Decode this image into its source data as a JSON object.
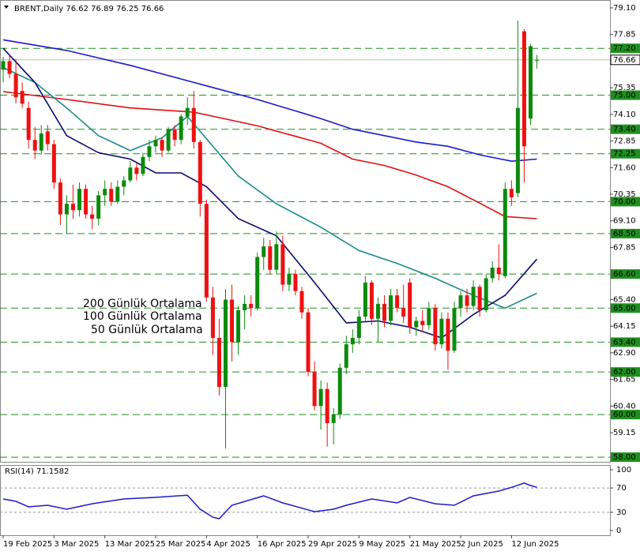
{
  "chart_data": [
    {
      "type": "candlestick",
      "title": "BRENT,Daily  76.62 76.89 76.25 76.66",
      "xticks": [
        {
          "value": 0,
          "label": "19 Feb 2025"
        },
        {
          "value": 8,
          "label": "3 Mar 2025"
        },
        {
          "value": 16,
          "label": "13 Mar 2025"
        },
        {
          "value": 24,
          "label": "25 Mar 2025"
        },
        {
          "value": 32,
          "label": "4 Apr 2025"
        },
        {
          "value": 40,
          "label": "16 Apr 2025"
        },
        {
          "value": 48,
          "label": "29 Apr 2025"
        },
        {
          "value": 56,
          "label": "9 May 2025"
        },
        {
          "value": 64,
          "label": "21 May 2025"
        },
        {
          "value": 72,
          "label": "2 Jun 2025"
        },
        {
          "value": 80,
          "label": "12 Jun 2025"
        }
      ],
      "xlim": [
        -0.5,
        95.5
      ],
      "open": [
        76.2,
        76.6,
        76.0,
        75.2,
        74.4,
        72.9,
        72.4,
        73.3,
        72.7,
        70.9,
        69.4,
        69.9,
        69.6,
        70.6,
        69.4,
        69.2,
        70.3,
        70.6,
        70.0,
        70.7,
        71.0,
        71.6,
        71.3,
        72.1,
        72.6,
        72.9,
        72.4,
        73.4,
        72.9,
        74.0,
        74.4,
        72.8,
        69.9,
        65.5,
        63.6,
        61.3,
        65.4,
        63.4,
        64.9,
        65.2,
        65.0,
        67.4,
        67.9,
        66.8,
        68.0,
        66.1,
        66.6,
        65.8,
        64.8,
        62.0,
        60.4,
        61.2,
        59.6,
        60.0,
        62.2,
        63.3,
        63.6,
        64.6,
        66.2,
        64.5,
        65.2,
        64.4,
        65.6,
        65.0,
        66.2,
        64.1,
        64.4,
        64.2,
        65.0,
        63.3,
        64.5,
        63.0,
        65.0,
        65.6,
        65.1,
        66.0,
        64.9,
        66.4,
        66.9,
        66.5,
        70.6,
        70.4,
        78.0,
        73.9,
        76.62
      ],
      "high": [
        76.8,
        76.9,
        76.7,
        75.6,
        74.7,
        73.5,
        73.6,
        73.6,
        72.9,
        71.1,
        70.3,
        70.8,
        70.9,
        70.8,
        69.8,
        70.5,
        71.0,
        70.9,
        71.0,
        71.2,
        71.9,
        71.8,
        72.3,
        72.9,
        73.1,
        73.0,
        73.5,
        73.6,
        74.1,
        74.9,
        75.2,
        72.9,
        70.1,
        66.0,
        64.5,
        65.9,
        66.1,
        65.1,
        65.6,
        65.6,
        67.6,
        68.3,
        68.2,
        68.6,
        68.4,
        66.9,
        66.8,
        66.0,
        65.0,
        62.5,
        61.6,
        61.5,
        60.3,
        62.4,
        63.7,
        64.0,
        64.9,
        66.5,
        66.3,
        65.5,
        65.6,
        65.9,
        65.9,
        66.1,
        66.4,
        64.6,
        64.9,
        65.3,
        65.2,
        64.8,
        64.8,
        65.3,
        65.8,
        65.9,
        66.3,
        66.1,
        66.6,
        67.2,
        68.0,
        70.9,
        71.0,
        78.5,
        78.1,
        77.4,
        76.89
      ],
      "low": [
        75.6,
        75.8,
        74.6,
        74.4,
        72.5,
        72.0,
        72.2,
        72.4,
        70.6,
        68.9,
        68.5,
        69.2,
        69.3,
        69.2,
        68.7,
        68.9,
        69.8,
        69.8,
        69.9,
        70.3,
        70.9,
        71.0,
        71.2,
        71.9,
        72.3,
        72.1,
        72.3,
        72.6,
        72.7,
        73.6,
        72.5,
        69.3,
        65.3,
        62.8,
        60.9,
        58.4,
        62.5,
        62.8,
        64.0,
        64.6,
        64.9,
        66.8,
        66.6,
        66.6,
        65.8,
        65.8,
        65.6,
        64.5,
        61.8,
        60.2,
        59.3,
        58.5,
        58.6,
        59.8,
        61.9,
        62.9,
        63.3,
        64.4,
        64.2,
        63.4,
        64.1,
        64.2,
        64.8,
        64.3,
        63.8,
        63.7,
        63.9,
        64.0,
        63.0,
        63.1,
        62.1,
        62.9,
        64.6,
        64.8,
        64.9,
        64.6,
        64.8,
        66.2,
        66.3,
        66.4,
        69.8,
        70.2,
        70.9,
        73.6,
        76.25
      ],
      "close": [
        76.6,
        76.0,
        74.9,
        74.6,
        72.9,
        72.4,
        73.2,
        72.7,
        70.9,
        69.4,
        69.9,
        69.6,
        70.6,
        69.4,
        69.2,
        70.3,
        70.6,
        70.0,
        70.7,
        71.0,
        71.6,
        71.3,
        72.1,
        72.6,
        72.9,
        72.4,
        73.4,
        72.9,
        74.0,
        74.4,
        72.8,
        69.9,
        65.5,
        63.6,
        61.3,
        65.4,
        63.4,
        64.9,
        65.2,
        65.0,
        67.4,
        67.9,
        66.8,
        68.0,
        66.1,
        66.6,
        65.8,
        64.8,
        62.0,
        60.4,
        61.2,
        59.6,
        60.0,
        62.2,
        63.3,
        63.6,
        64.6,
        66.2,
        64.5,
        65.2,
        64.4,
        65.6,
        65.0,
        64.6,
        64.1,
        64.4,
        64.2,
        65.0,
        63.3,
        64.5,
        63.0,
        65.0,
        65.6,
        65.1,
        66.0,
        64.9,
        66.4,
        66.9,
        66.6,
        70.6,
        70.2,
        74.4,
        72.6,
        77.3,
        76.66
      ],
      "up_color": "#0c8a0c",
      "down_color": "#ee1111",
      "ylim": [
        57.78,
        79.47
      ],
      "yticks": [
        {
          "value": 79.1,
          "label": "79.10"
        },
        {
          "value": 77.85,
          "label": "77.85"
        },
        {
          "value": 75.35,
          "label": "75.35"
        },
        {
          "value": 74.1,
          "label": "74.10"
        },
        {
          "value": 72.85,
          "label": "72.85"
        },
        {
          "value": 71.6,
          "label": "71.60"
        },
        {
          "value": 70.35,
          "label": "70.35"
        },
        {
          "value": 69.1,
          "label": "69.10"
        },
        {
          "value": 67.85,
          "label": "67.85"
        },
        {
          "value": 65.4,
          "label": "65.40"
        },
        {
          "value": 64.15,
          "label": "64.15"
        },
        {
          "value": 62.9,
          "label": "62.90"
        },
        {
          "value": 61.65,
          "label": "61.65"
        },
        {
          "value": 60.4,
          "label": "60.40"
        },
        {
          "value": 59.15,
          "label": "59.15"
        }
      ],
      "levels": [
        {
          "value": 77.2,
          "label": "77.20"
        },
        {
          "value": 75.0,
          "label": "75.00"
        },
        {
          "value": 73.4,
          "label": "73.40"
        },
        {
          "value": 72.25,
          "label": "72.25"
        },
        {
          "value": 70.0,
          "label": "70.00"
        },
        {
          "value": 68.5,
          "label": "68.50"
        },
        {
          "value": 66.6,
          "label": "66.60"
        },
        {
          "value": 65.0,
          "label": "65.00"
        },
        {
          "value": 63.4,
          "label": "63.40"
        },
        {
          "value": 62.0,
          "label": "62.00"
        },
        {
          "value": 60.0,
          "label": "60.00"
        },
        {
          "value": 58.0,
          "label": "58.00"
        }
      ],
      "level_color": "#1f8f1f",
      "last_price": {
        "value": 76.66,
        "label": "76.66"
      },
      "ma": [
        {
          "name": "200 Günlük Ortalama",
          "color": "#1a1acc",
          "x": [
            0,
            10,
            20,
            30,
            40,
            50,
            55,
            60,
            65,
            70,
            75,
            80,
            84
          ],
          "values": [
            77.6,
            77.1,
            76.4,
            75.6,
            74.8,
            73.9,
            73.4,
            73.1,
            72.8,
            72.6,
            72.2,
            71.9,
            72.0
          ]
        },
        {
          "name": "100 Günlük Ortalama",
          "color": "#e01010",
          "x": [
            0,
            10,
            20,
            30,
            40,
            50,
            55,
            60,
            65,
            70,
            75,
            79,
            84
          ],
          "values": [
            75.17,
            74.8,
            74.4,
            74.2,
            73.56,
            72.74,
            72.0,
            71.7,
            71.25,
            70.7,
            69.93,
            69.3,
            69.2
          ]
        },
        {
          "name": "50 Günlük Ortalama",
          "color": "#1a8a8a",
          "x": [
            0,
            5,
            10,
            15,
            20,
            25,
            29,
            31,
            37,
            43,
            50,
            56,
            62,
            68,
            74,
            79,
            84
          ],
          "values": [
            76.3,
            75.6,
            74.4,
            73.1,
            72.4,
            73.0,
            74.0,
            73.3,
            71.2,
            69.9,
            68.8,
            67.7,
            67.1,
            66.4,
            65.6,
            65.0,
            65.7
          ]
        },
        {
          "color": "#0a0a6e",
          "x": [
            0,
            5,
            10,
            15,
            20,
            24,
            28,
            32,
            37,
            43,
            49,
            54,
            59,
            64,
            69,
            74,
            79,
            84
          ],
          "values": [
            77.2,
            75.6,
            73.1,
            72.3,
            72.0,
            71.35,
            71.35,
            70.7,
            69.2,
            68.4,
            66.2,
            64.3,
            64.4,
            64.1,
            63.6,
            64.7,
            65.6,
            67.3
          ]
        }
      ]
    },
    {
      "type": "line",
      "title": "RSI(14) 71.1582",
      "x": [
        0,
        2,
        4,
        7,
        10,
        14,
        19,
        24,
        29,
        31,
        33,
        34,
        36,
        41,
        44,
        49,
        52,
        54,
        58,
        62,
        64,
        68,
        71,
        74,
        78,
        80,
        82,
        83,
        84
      ],
      "values": [
        52,
        48,
        39,
        41.5,
        35,
        44,
        52,
        54.5,
        58,
        35,
        22,
        19.5,
        41.5,
        57,
        45.5,
        31,
        35,
        41.5,
        52,
        45.5,
        54.5,
        44,
        41.5,
        57,
        65,
        71,
        78,
        74,
        71.2
      ],
      "color": "#1a1acc",
      "ylim": [
        -7.8,
        106.5
      ],
      "yticks": [
        100,
        70,
        30,
        0
      ],
      "dashed_levels": [
        70,
        30
      ]
    }
  ]
}
